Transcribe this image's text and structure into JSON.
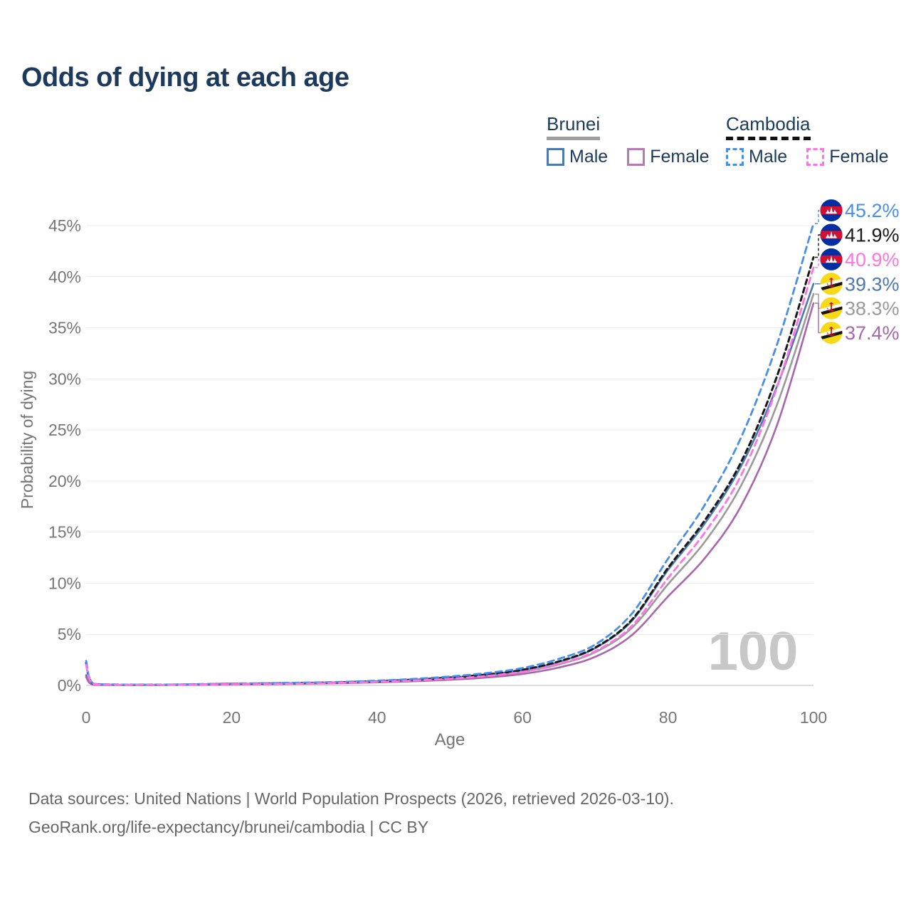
{
  "title": "Odds of dying at each age",
  "legend": {
    "groups": [
      {
        "label": "Brunei",
        "line_style": "solid",
        "underline_color": "#9e9e9e",
        "items": [
          {
            "label": "Male",
            "color": "#4d79b3",
            "dashed": false
          },
          {
            "label": "Female",
            "color": "#b779b3",
            "dashed": false
          }
        ]
      },
      {
        "label": "Cambodia",
        "line_style": "dashed",
        "underline_color": "#111111",
        "items": [
          {
            "label": "Male",
            "color": "#4a8fe7",
            "dashed": true
          },
          {
            "label": "Female",
            "color": "#ff74e0",
            "dashed": true
          }
        ]
      }
    ]
  },
  "footer": {
    "line1": "Data sources: United Nations | World Population Prospects (2026, retrieved 2026-03-10).",
    "line2": "GeoRank.org/life-expectancy/brunei/cambodia | CC BY"
  },
  "flags": {
    "cambodia": {
      "blue": "#032ea1",
      "red": "#d21034",
      "temple": "#ffffff"
    },
    "brunei": {
      "yellow": "#f7d917",
      "white": "#ffffff",
      "black": "#141414",
      "crest": "#cf1126"
    }
  },
  "chart_data": {
    "type": "line",
    "title": "Odds of dying at each age",
    "xlabel": "Age",
    "ylabel": "Probability of dying",
    "xlim": [
      0,
      100
    ],
    "ylim": [
      0,
      47
    ],
    "grid": "horizontal",
    "watermark": "100",
    "x_ticks": [
      {
        "value": 0,
        "label": "0"
      },
      {
        "value": 20,
        "label": "20"
      },
      {
        "value": 40,
        "label": "40"
      },
      {
        "value": 60,
        "label": "60"
      },
      {
        "value": 80,
        "label": "80"
      },
      {
        "value": 100,
        "label": "100"
      }
    ],
    "y_ticks": [
      {
        "value": 0,
        "label": "0%"
      },
      {
        "value": 5,
        "label": "5%"
      },
      {
        "value": 10,
        "label": "10%"
      },
      {
        "value": 15,
        "label": "15%"
      },
      {
        "value": 20,
        "label": "20%"
      },
      {
        "value": 25,
        "label": "25%"
      },
      {
        "value": 30,
        "label": "30%"
      },
      {
        "value": 35,
        "label": "35%"
      },
      {
        "value": 40,
        "label": "40%"
      },
      {
        "value": 45,
        "label": "45%"
      }
    ],
    "x": [
      0,
      1,
      5,
      10,
      15,
      20,
      25,
      30,
      35,
      40,
      45,
      50,
      55,
      60,
      65,
      70,
      75,
      80,
      85,
      90,
      95,
      100
    ],
    "series": [
      {
        "name": "Cambodia Male",
        "country": "Cambodia",
        "sex": "Male",
        "color": "#4a8fe7",
        "dash": "9 6",
        "stroke_width": 2.8,
        "flag": "cambodia",
        "end_label": "45.2%",
        "values": [
          2.4,
          0.16,
          0.08,
          0.07,
          0.12,
          0.18,
          0.22,
          0.27,
          0.34,
          0.46,
          0.63,
          0.87,
          1.2,
          1.7,
          2.6,
          4.0,
          7.0,
          12.4,
          17.6,
          24.2,
          33.4,
          45.2
        ]
      },
      {
        "name": "Cambodia",
        "country": "Cambodia",
        "sex": "Both",
        "color": "#1a1a1a",
        "dash": "7 5",
        "stroke_width": 3,
        "flag": "cambodia",
        "end_label": "41.9%",
        "values": [
          2.2,
          0.14,
          0.07,
          0.06,
          0.1,
          0.15,
          0.19,
          0.24,
          0.3,
          0.41,
          0.56,
          0.77,
          1.06,
          1.52,
          2.35,
          3.7,
          6.4,
          11.5,
          16.1,
          21.8,
          30.3,
          41.9
        ]
      },
      {
        "name": "Cambodia Female",
        "country": "Cambodia",
        "sex": "Female",
        "color": "#ff74e0",
        "dash": "9 6",
        "stroke_width": 2.8,
        "flag": "cambodia",
        "end_label": "40.9%",
        "values": [
          2.0,
          0.12,
          0.06,
          0.05,
          0.08,
          0.12,
          0.15,
          0.19,
          0.25,
          0.34,
          0.47,
          0.65,
          0.92,
          1.33,
          2.1,
          3.35,
          5.8,
          10.5,
          14.9,
          20.5,
          29.2,
          40.9
        ]
      },
      {
        "name": "Brunei Male",
        "country": "Brunei",
        "sex": "Male",
        "color": "#4d79b3",
        "dash": null,
        "stroke_width": 2.6,
        "flag": "brunei",
        "end_label": "39.3%",
        "values": [
          1.0,
          0.08,
          0.05,
          0.05,
          0.09,
          0.14,
          0.18,
          0.23,
          0.3,
          0.4,
          0.55,
          0.76,
          1.05,
          1.5,
          2.3,
          3.65,
          6.3,
          11.3,
          15.8,
          21.4,
          29.3,
          39.3
        ]
      },
      {
        "name": "Brunei",
        "country": "Brunei",
        "sex": "Both",
        "color": "#9a9a9a",
        "dash": null,
        "stroke_width": 2.6,
        "flag": "brunei",
        "end_label": "38.3%",
        "values": [
          0.9,
          0.07,
          0.045,
          0.045,
          0.08,
          0.12,
          0.16,
          0.2,
          0.26,
          0.35,
          0.48,
          0.66,
          0.92,
          1.32,
          2.05,
          3.25,
          5.6,
          9.9,
          14.0,
          19.5,
          27.5,
          38.3
        ]
      },
      {
        "name": "Brunei Female",
        "country": "Brunei",
        "sex": "Female",
        "color": "#a667ad",
        "dash": null,
        "stroke_width": 2.6,
        "flag": "brunei",
        "end_label": "37.4%",
        "values": [
          0.8,
          0.06,
          0.04,
          0.04,
          0.06,
          0.09,
          0.12,
          0.16,
          0.21,
          0.29,
          0.4,
          0.55,
          0.77,
          1.12,
          1.75,
          2.8,
          4.9,
          8.7,
          12.4,
          17.5,
          25.5,
          37.4
        ]
      }
    ]
  }
}
